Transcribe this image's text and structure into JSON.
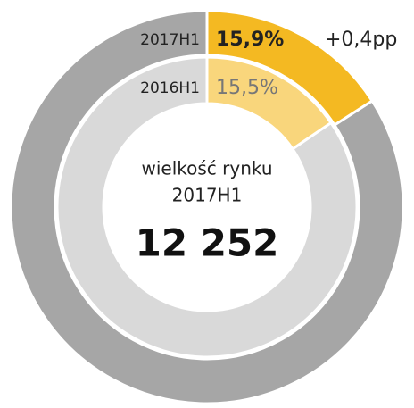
{
  "chart_data": {
    "type": "donut",
    "series": [
      {
        "name": "2017H1",
        "values": [
          15.9,
          84.1
        ],
        "value_labels": [
          "15,9%",
          null
        ],
        "colors": [
          "#f4b922",
          "#a6a6a6"
        ]
      },
      {
        "name": "2016H1",
        "values": [
          15.5,
          84.5
        ],
        "value_labels": [
          "15,5%",
          null
        ],
        "colors": [
          "#f9d67c",
          "#d9d9d9"
        ]
      }
    ],
    "annotation": "+0,4pp",
    "center_label": "wielkość rynku",
    "center_sublabel": "2017H1",
    "center_value": {
      "value": 12252,
      "label": "12 252"
    }
  }
}
